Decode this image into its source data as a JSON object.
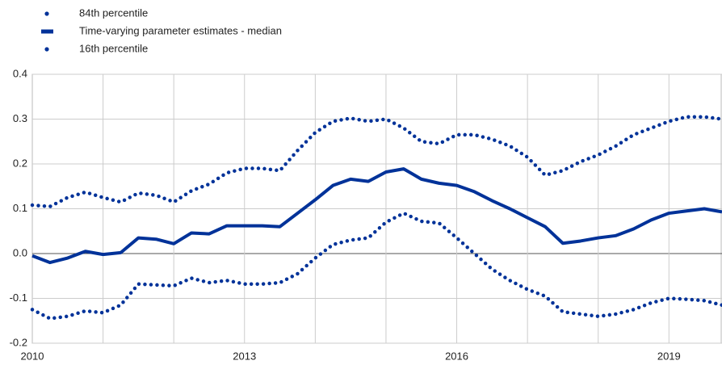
{
  "chart_data": {
    "type": "line",
    "x": [
      2010,
      2010.25,
      2010.5,
      2010.75,
      2011,
      2011.25,
      2011.5,
      2011.75,
      2012,
      2012.25,
      2012.5,
      2012.75,
      2013,
      2013.25,
      2013.5,
      2013.75,
      2014,
      2014.25,
      2014.5,
      2014.75,
      2015,
      2015.25,
      2015.5,
      2015.75,
      2016,
      2016.25,
      2016.5,
      2016.75,
      2017,
      2017.25,
      2017.5,
      2017.75,
      2018,
      2018.25,
      2018.5,
      2018.75,
      2019,
      2019.25,
      2019.5,
      2019.75
    ],
    "series": [
      {
        "name": "84th percentile",
        "color": "#003299",
        "style": "dotted",
        "values": [
          0.108,
          0.105,
          0.125,
          0.137,
          0.125,
          0.115,
          0.135,
          0.13,
          0.115,
          0.14,
          0.155,
          0.18,
          0.19,
          0.19,
          0.185,
          0.23,
          0.27,
          0.295,
          0.302,
          0.295,
          0.3,
          0.28,
          0.25,
          0.245,
          0.265,
          0.265,
          0.255,
          0.24,
          0.215,
          0.175,
          0.185,
          0.205,
          0.22,
          0.24,
          0.265,
          0.28,
          0.295,
          0.305,
          0.305,
          0.3
        ]
      },
      {
        "name": "Time-varying parameter estimates - median",
        "color": "#003299",
        "style": "solid",
        "values": [
          -0.005,
          -0.02,
          -0.01,
          0.005,
          -0.002,
          0.002,
          0.035,
          0.032,
          0.022,
          0.046,
          0.044,
          0.062,
          0.062,
          0.062,
          0.06,
          0.09,
          0.12,
          0.152,
          0.166,
          0.161,
          0.182,
          0.189,
          0.166,
          0.157,
          0.152,
          0.138,
          0.118,
          0.1,
          0.08,
          0.06,
          0.023,
          0.028,
          0.035,
          0.04,
          0.055,
          0.075,
          0.09,
          0.095,
          0.1,
          0.093
        ]
      },
      {
        "name": "16th percentile",
        "color": "#003299",
        "style": "dotted",
        "values": [
          -0.125,
          -0.145,
          -0.14,
          -0.128,
          -0.132,
          -0.115,
          -0.068,
          -0.07,
          -0.072,
          -0.055,
          -0.065,
          -0.06,
          -0.068,
          -0.068,
          -0.065,
          -0.045,
          -0.01,
          0.02,
          0.03,
          0.035,
          0.07,
          0.09,
          0.072,
          0.068,
          0.035,
          0.0,
          -0.035,
          -0.06,
          -0.08,
          -0.095,
          -0.13,
          -0.135,
          -0.14,
          -0.135,
          -0.125,
          -0.11,
          -0.1,
          -0.102,
          -0.105,
          -0.115
        ]
      }
    ],
    "xlim": [
      2010,
      2019.75
    ],
    "xticks": [
      2010,
      2013,
      2016,
      2019
    ],
    "xgrid": [
      2011,
      2012,
      2013,
      2014,
      2015,
      2016,
      2017,
      2018,
      2019
    ],
    "ylim": [
      -0.2,
      0.4
    ],
    "yticks": [
      -0.2,
      -0.1,
      {
        "value": 0,
        "label": "0.0"
      },
      0.1,
      0.2,
      0.3,
      0.4
    ],
    "grid": true
  }
}
